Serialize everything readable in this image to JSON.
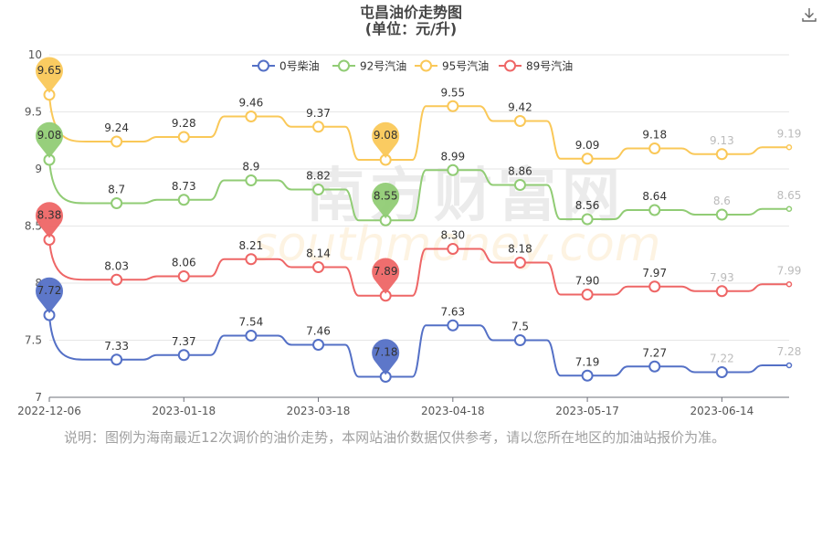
{
  "title": "屯昌油价走势图",
  "subtitle": "(单位：元/升)",
  "watermark": {
    "cn": "南方财富网",
    "en": "southmoney.com"
  },
  "note": "说明：图例为海南最近12次调价的油价走势，本网站油价数据仅供参考，请以您所在地区的加油站报价为准。",
  "download_icon": "download-icon",
  "chart_data": {
    "type": "line",
    "title": "屯昌油价走势图",
    "subtitle": "(单位：元/升)",
    "xlabel": "",
    "ylabel": "",
    "ylim": [
      7,
      10
    ],
    "yticks": [
      "7",
      "7.5",
      "8",
      "8.5",
      "9",
      "9.5",
      "10"
    ],
    "xtick_labels": [
      "2022-12-06",
      "2023-01-18",
      "2023-03-18",
      "2023-04-18",
      "2023-05-17",
      "2023-06-14"
    ],
    "xtick_index": [
      0,
      2,
      4,
      6,
      8,
      10
    ],
    "grid": true,
    "legend_position": "top",
    "series": [
      {
        "name": "0号柴油",
        "color": "#5470c6",
        "values": [
          7.72,
          7.33,
          7.37,
          7.54,
          7.46,
          7.18,
          7.63,
          7.5,
          7.19,
          7.27,
          7.22,
          7.28
        ],
        "labels": [
          "7.72",
          "7.33",
          "7.37",
          "7.54",
          "7.46",
          "7.18",
          "7.63",
          "7.5",
          "7.19",
          "7.27",
          "7.22",
          "7.28"
        ],
        "max_index": 0,
        "min_index": 5
      },
      {
        "name": "92号汽油",
        "color": "#91cc75",
        "values": [
          9.08,
          8.7,
          8.73,
          8.9,
          8.82,
          8.55,
          8.99,
          8.86,
          8.56,
          8.64,
          8.6,
          8.65
        ],
        "labels": [
          "9.08",
          "8.7",
          "8.73",
          "8.9",
          "8.82",
          "8.55",
          "8.99",
          "8.86",
          "8.56",
          "8.64",
          "8.6",
          "8.65"
        ],
        "max_index": 0,
        "min_index": 5
      },
      {
        "name": "95号汽油",
        "color": "#fac858",
        "values": [
          9.65,
          9.24,
          9.28,
          9.46,
          9.37,
          9.08,
          9.55,
          9.42,
          9.09,
          9.18,
          9.13,
          9.19
        ],
        "labels": [
          "9.65",
          "9.24",
          "9.28",
          "9.46",
          "9.37",
          "9.08",
          "9.55",
          "9.42",
          "9.09",
          "9.18",
          "9.13",
          "9.19"
        ],
        "max_index": 0,
        "min_index": 5
      },
      {
        "name": "89号汽油",
        "color": "#ee6666",
        "values": [
          8.38,
          8.03,
          8.06,
          8.21,
          8.14,
          7.89,
          8.3,
          8.18,
          7.9,
          7.97,
          7.93,
          7.99
        ],
        "labels": [
          "8.38",
          "8.03",
          "8.06",
          "8.21",
          "8.14",
          "7.89",
          "8.30",
          "8.18",
          "7.90",
          "7.97",
          "7.93",
          "7.99"
        ],
        "max_index": 0,
        "min_index": 5
      }
    ]
  }
}
